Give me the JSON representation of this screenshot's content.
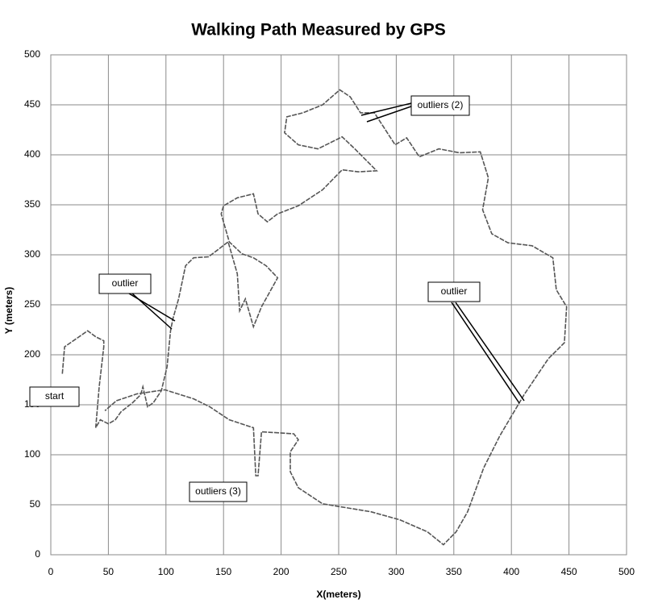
{
  "chart_data": {
    "type": "line",
    "title": "Walking Path Measured by GPS",
    "x_label": "X(meters)",
    "y_label": "Y (meters)",
    "color": "#555555",
    "grid": true,
    "xlim": [
      0,
      500
    ],
    "xticks": [
      0,
      50,
      100,
      150,
      200,
      250,
      300,
      350,
      400,
      450,
      500
    ],
    "ylim": [
      0,
      500
    ],
    "yticks": [
      0,
      50,
      100,
      150,
      200,
      250,
      300,
      350,
      400,
      450,
      500
    ],
    "x": [
      10,
      12,
      22,
      32,
      39,
      46,
      46,
      42,
      39,
      43,
      50,
      56,
      61,
      71,
      78,
      80,
      84,
      89,
      96,
      101,
      104,
      106,
      111,
      117,
      124,
      137,
      145,
      154,
      158,
      162,
      164,
      169,
      176,
      183,
      197,
      187,
      176,
      166,
      155,
      148,
      150,
      162,
      176,
      180,
      188,
      197,
      215,
      236,
      253,
      267,
      283,
      264,
      253,
      232,
      215,
      203,
      205,
      219,
      236,
      251,
      260,
      269,
      281,
      299,
      309,
      320,
      337,
      355,
      373,
      380,
      375,
      383,
      397,
      418,
      436,
      439,
      448,
      446,
      432,
      411,
      390,
      376,
      362,
      352,
      341,
      327,
      303,
      278,
      236,
      215,
      208,
      208,
      215,
      211,
      183,
      180,
      178,
      176,
      155,
      138,
      124,
      99,
      75,
      57,
      47
    ],
    "values": [
      181,
      208,
      216,
      224,
      218,
      214,
      208,
      168,
      127,
      135,
      131,
      135,
      143,
      152,
      160,
      168,
      148,
      152,
      164,
      188,
      224,
      236,
      256,
      289,
      297,
      298,
      305,
      313,
      297,
      281,
      244,
      256,
      228,
      248,
      277,
      289,
      297,
      301,
      313,
      341,
      349,
      357,
      361,
      341,
      333,
      341,
      349,
      365,
      385,
      383,
      384,
      406,
      418,
      406,
      410,
      422,
      438,
      442,
      450,
      465,
      458,
      442,
      442,
      410,
      417,
      398,
      406,
      402,
      403,
      377,
      345,
      321,
      312,
      309,
      297,
      265,
      248,
      212,
      196,
      160,
      119,
      87,
      43,
      23,
      10,
      23,
      35,
      43,
      51,
      67,
      83,
      103,
      115,
      121,
      123,
      79,
      79,
      127,
      135,
      148,
      156,
      165,
      161,
      154,
      144
    ],
    "annotations": [
      "outliers (2)",
      "outlier",
      "outlier",
      "start",
      "outliers (3)"
    ]
  }
}
